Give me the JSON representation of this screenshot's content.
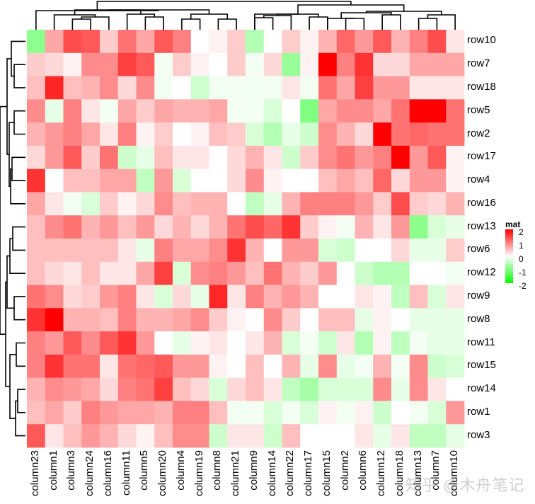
{
  "chart_data": {
    "type": "heatmap",
    "title": "",
    "legend": {
      "title": "mat",
      "ticks": [
        "2",
        "1",
        "0",
        "-1",
        "-2"
      ],
      "range": [
        -2,
        2
      ],
      "colors": {
        "low": "#00ff00",
        "mid": "#ffffff",
        "high": "#ff0000"
      },
      "position": "right"
    },
    "columns": [
      "column23",
      "column1",
      "column3",
      "column24",
      "column16",
      "column11",
      "column5",
      "column20",
      "column4",
      "column19",
      "column8",
      "column21",
      "column9",
      "column14",
      "column22",
      "column17",
      "column15",
      "column2",
      "column6",
      "column12",
      "column18",
      "column13",
      "column7",
      "column10"
    ],
    "rows": [
      "row10",
      "row7",
      "row18",
      "row5",
      "row2",
      "row17",
      "row4",
      "row16",
      "row13",
      "row6",
      "row12",
      "row9",
      "row8",
      "row11",
      "row15",
      "row14",
      "row1",
      "row3"
    ],
    "values": [
      [
        -0.9,
        0.7,
        1.4,
        1.3,
        0.4,
        1.1,
        0.7,
        1.3,
        1.0,
        0.0,
        0.1,
        0.4,
        -0.6,
        0.0,
        0.4,
        0.1,
        0.6,
        1.2,
        0.8,
        1.3,
        0.6,
        1.0,
        1.4,
        0.2
      ],
      [
        0.4,
        0.3,
        0.1,
        0.9,
        0.9,
        1.5,
        1.3,
        -0.1,
        0.4,
        0.1,
        0.0,
        0.4,
        -0.1,
        0.3,
        -0.8,
        0.1,
        2.0,
        1.0,
        1.6,
        0.3,
        0.3,
        0.7,
        0.7,
        0.7
      ],
      [
        0.5,
        1.7,
        0.5,
        0.6,
        0.9,
        0.3,
        0.9,
        -0.1,
        0.0,
        -0.4,
        -0.1,
        -0.1,
        -0.1,
        -0.1,
        0.2,
        -0.1,
        1.1,
        0.7,
        1.5,
        0.8,
        0.8,
        0.2,
        0.2,
        0.2
      ],
      [
        0.9,
        -0.2,
        1.0,
        0.2,
        -0.1,
        0.7,
        0.4,
        0.7,
        0.6,
        0.6,
        0.7,
        -0.1,
        -0.1,
        -0.3,
        0.0,
        -1.0,
        0.7,
        0.9,
        0.9,
        0.7,
        1.1,
        2.0,
        2.0,
        1.1
      ],
      [
        0.6,
        0.8,
        1.0,
        0.7,
        0.2,
        1.0,
        0.1,
        0.4,
        0.0,
        0.1,
        0.5,
        0.4,
        -0.3,
        -0.6,
        -0.2,
        -0.4,
        0.9,
        0.6,
        0.3,
        2.0,
        1.1,
        1.2,
        1.1,
        1.1
      ],
      [
        0.3,
        0.8,
        1.3,
        0.4,
        1.1,
        -0.4,
        -0.2,
        0.5,
        0.2,
        0.2,
        0.0,
        0.3,
        0.6,
        0.2,
        -0.4,
        0.4,
        0.9,
        1.1,
        0.8,
        1.0,
        2.0,
        0.8,
        1.3,
        0.1
      ],
      [
        1.6,
        0.0,
        0.5,
        0.5,
        0.7,
        0.7,
        -0.5,
        0.8,
        -0.3,
        0.0,
        0.0,
        0.3,
        0.9,
        0.1,
        0.0,
        0.0,
        0.5,
        0.7,
        0.5,
        1.2,
        0.3,
        0.8,
        0.8,
        0.1
      ],
      [
        0.7,
        0.2,
        -0.1,
        -0.3,
        0.4,
        0.1,
        0.3,
        0.9,
        0.5,
        0.6,
        0.6,
        0.0,
        -0.5,
        -0.2,
        0.6,
        1.0,
        1.0,
        1.0,
        0.8,
        0.4,
        1.4,
        0.4,
        0.3,
        0.6
      ],
      [
        0.5,
        0.9,
        1.1,
        0.6,
        0.8,
        0.5,
        0.8,
        0.3,
        0.6,
        0.3,
        0.6,
        1.1,
        1.4,
        1.2,
        1.6,
        0.4,
        0.1,
        -0.1,
        0.6,
        0.2,
        0.8,
        -0.9,
        -0.3,
        -0.2
      ],
      [
        0.5,
        0.5,
        0.5,
        0.5,
        0.5,
        0.2,
        -0.2,
        1.0,
        0.7,
        0.7,
        0.9,
        1.6,
        0.6,
        0.0,
        0.8,
        0.8,
        -0.3,
        -0.4,
        0.0,
        0.0,
        0.3,
        -0.2,
        -0.2,
        0.4
      ],
      [
        0.5,
        0.3,
        0.2,
        0.5,
        0.2,
        0.2,
        0.7,
        1.5,
        -0.3,
        0.9,
        1.0,
        0.8,
        0.5,
        1.1,
        0.6,
        0.4,
        0.8,
        0.0,
        -0.4,
        -0.6,
        -0.6,
        0.0,
        0.0,
        -0.1
      ],
      [
        1.1,
        0.9,
        0.3,
        0.4,
        0.8,
        1.0,
        0.2,
        -0.3,
        0.3,
        -0.2,
        1.7,
        0.2,
        1.0,
        0.6,
        0.8,
        0.6,
        0.0,
        0.0,
        0.2,
        0.1,
        -0.5,
        0.5,
        -0.3,
        0.2
      ],
      [
        1.6,
        2.0,
        0.6,
        0.6,
        0.5,
        1.0,
        0.6,
        0.6,
        0.7,
        0.9,
        0.4,
        0.1,
        0.0,
        0.9,
        0.4,
        0.0,
        0.5,
        0.5,
        -0.2,
        0.1,
        0.0,
        -0.2,
        -0.2,
        -0.2
      ],
      [
        1.0,
        0.8,
        1.3,
        0.9,
        1.3,
        1.6,
        0.8,
        0.0,
        -0.2,
        0.1,
        0.2,
        0.0,
        0.2,
        0.6,
        -0.3,
        -0.1,
        -0.4,
        0.2,
        -0.6,
        0.1,
        -0.5,
        -0.1,
        -0.2,
        -0.2
      ],
      [
        1.0,
        1.6,
        1.1,
        1.1,
        0.2,
        1.1,
        1.2,
        1.3,
        0.8,
        0.8,
        0.1,
        0.0,
        0.5,
        0.0,
        0.6,
        -0.2,
        0.9,
        -0.2,
        -0.1,
        0.6,
        -0.1,
        0.9,
        -0.4,
        -0.3
      ],
      [
        0.6,
        0.9,
        0.8,
        0.7,
        0.3,
        1.0,
        1.1,
        1.5,
        0.5,
        0.3,
        -0.3,
        0.3,
        0.5,
        0.2,
        -0.5,
        -0.7,
        -0.3,
        -0.3,
        -0.3,
        0.9,
        -0.2,
        0.9,
        0.2,
        0.0
      ],
      [
        0.5,
        0.7,
        0.4,
        1.0,
        0.8,
        0.7,
        0.7,
        0.6,
        1.0,
        1.0,
        0.5,
        -0.1,
        -0.1,
        -0.3,
        -0.1,
        -0.3,
        0.1,
        -0.1,
        0.1,
        -0.4,
        0.0,
        -0.1,
        -0.3,
        0.8
      ],
      [
        1.3,
        0.2,
        0.5,
        0.8,
        0.6,
        0.3,
        0.1,
        0.5,
        0.9,
        0.9,
        -0.4,
        0.2,
        0.2,
        -0.4,
        0.5,
        0.0,
        0.0,
        0.0,
        0.2,
        -0.2,
        0.2,
        -0.5,
        -0.5,
        -0.2
      ]
    ],
    "row_dendrogram": true,
    "column_dendrogram": true,
    "grid": false
  },
  "watermark": "知乎 @木舟笔记"
}
